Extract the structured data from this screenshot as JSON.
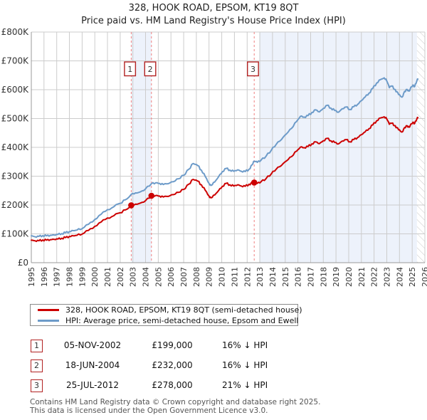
{
  "title": "328, HOOK ROAD, EPSOM, KT19 8QT",
  "subtitle": "Price paid vs. HM Land Registry's House Price Index (HPI)",
  "chart_data": {
    "type": "line",
    "title": "328, HOOK ROAD, EPSOM, KT19 8QT",
    "subtitle": "Price paid vs. HM Land Registry's House Price Index (HPI)",
    "x_axis": {
      "min": 1995,
      "max": 2026,
      "tick_labels": [
        "1995",
        "1996",
        "1997",
        "1998",
        "1999",
        "2000",
        "2001",
        "2002",
        "2003",
        "2004",
        "2005",
        "2006",
        "2007",
        "2008",
        "2009",
        "2010",
        "2011",
        "2012",
        "2013",
        "2014",
        "2015",
        "2016",
        "2017",
        "2018",
        "2019",
        "2020",
        "2021",
        "2022",
        "2023",
        "2024",
        "2025",
        "2026"
      ]
    },
    "y_axis": {
      "min": 0,
      "max": 800000,
      "ticks": [
        {
          "value": 0,
          "label": "£0"
        },
        {
          "value": 100000,
          "label": "£100K"
        },
        {
          "value": 200000,
          "label": "£200K"
        },
        {
          "value": 300000,
          "label": "£300K"
        },
        {
          "value": 400000,
          "label": "£400K"
        },
        {
          "value": 500000,
          "label": "£500K"
        },
        {
          "value": 600000,
          "label": "£600K"
        },
        {
          "value": 700000,
          "label": "£700K"
        },
        {
          "value": 800000,
          "label": "£800K"
        }
      ]
    },
    "grid": true,
    "legend_position": "below",
    "colors": {
      "property_line": "#cc0000",
      "hpi_line": "#6d9bc9",
      "shaded_band": "#edf2fb",
      "gridline": "#cccccc",
      "axis": "#999999",
      "marker_dashed_line": "#f08080",
      "marker_box_border": "#b22222",
      "hatch_line": "#c8c8c8"
    },
    "shaded_bands": [
      [
        2002.87,
        2004.46
      ],
      [
        2012.95,
        2026
      ]
    ],
    "hatch_band": [
      2025.37,
      2026
    ],
    "sale_markers": [
      {
        "num": "1",
        "year": 2002.87,
        "price": 199000
      },
      {
        "num": "2",
        "year": 2004.46,
        "price": 232000
      },
      {
        "num": "3",
        "year": 2012.56,
        "price": 278000
      }
    ],
    "series": [
      {
        "name": "328, HOOK ROAD, EPSOM, KT19 8QT (semi-detached house)",
        "color": "#cc0000",
        "points": [
          [
            1995.0,
            78000
          ],
          [
            1995.3,
            76000
          ],
          [
            1995.6,
            76000
          ],
          [
            1995.9,
            79000
          ],
          [
            1996.2,
            78000
          ],
          [
            1996.5,
            80000
          ],
          [
            1996.8,
            81000
          ],
          [
            1997.1,
            82000
          ],
          [
            1997.4,
            85000
          ],
          [
            1997.7,
            87000
          ],
          [
            1998.0,
            91000
          ],
          [
            1998.3,
            93000
          ],
          [
            1998.6,
            95000
          ],
          [
            1999.0,
            99000
          ],
          [
            1999.5,
            112000
          ],
          [
            2000.0,
            126000
          ],
          [
            2000.5,
            141000
          ],
          [
            2001.0,
            155000
          ],
          [
            2001.5,
            163000
          ],
          [
            2002.0,
            173000
          ],
          [
            2002.4,
            183000
          ],
          [
            2002.87,
            199000
          ],
          [
            2003.2,
            203000
          ],
          [
            2003.6,
            207000
          ],
          [
            2004.0,
            215000
          ],
          [
            2004.46,
            232000
          ],
          [
            2004.8,
            233000
          ],
          [
            2005.1,
            231000
          ],
          [
            2005.4,
            228000
          ],
          [
            2005.8,
            230000
          ],
          [
            2006.2,
            236000
          ],
          [
            2006.6,
            244000
          ],
          [
            2007.0,
            254000
          ],
          [
            2007.4,
            272000
          ],
          [
            2007.75,
            289000
          ],
          [
            2008.1,
            283000
          ],
          [
            2008.4,
            270000
          ],
          [
            2008.7,
            251000
          ],
          [
            2009.0,
            231000
          ],
          [
            2009.15,
            225000
          ],
          [
            2009.45,
            235000
          ],
          [
            2009.75,
            250000
          ],
          [
            2010.05,
            265000
          ],
          [
            2010.35,
            275000
          ],
          [
            2010.65,
            270000
          ],
          [
            2010.95,
            266000
          ],
          [
            2011.25,
            270000
          ],
          [
            2011.55,
            266000
          ],
          [
            2011.85,
            265000
          ],
          [
            2012.15,
            272000
          ],
          [
            2012.4,
            276000
          ],
          [
            2012.56,
            278000
          ],
          [
            2012.8,
            275000
          ],
          [
            2013.1,
            281000
          ],
          [
            2013.5,
            292000
          ],
          [
            2013.9,
            308000
          ],
          [
            2014.3,
            325000
          ],
          [
            2014.7,
            337000
          ],
          [
            2015.1,
            353000
          ],
          [
            2015.5,
            368000
          ],
          [
            2015.9,
            387000
          ],
          [
            2016.2,
            401000
          ],
          [
            2016.5,
            399000
          ],
          [
            2016.8,
            403000
          ],
          [
            2017.1,
            412000
          ],
          [
            2017.4,
            419000
          ],
          [
            2017.7,
            413000
          ],
          [
            2018.0,
            423000
          ],
          [
            2018.3,
            431000
          ],
          [
            2018.6,
            423000
          ],
          [
            2018.9,
            417000
          ],
          [
            2019.2,
            412000
          ],
          [
            2019.5,
            422000
          ],
          [
            2019.8,
            427000
          ],
          [
            2020.1,
            419000
          ],
          [
            2020.4,
            427000
          ],
          [
            2020.7,
            434000
          ],
          [
            2021.0,
            444000
          ],
          [
            2021.3,
            454000
          ],
          [
            2021.6,
            465000
          ],
          [
            2021.9,
            478000
          ],
          [
            2022.2,
            492000
          ],
          [
            2022.5,
            502000
          ],
          [
            2022.8,
            506000
          ],
          [
            2023.0,
            498000
          ],
          [
            2023.2,
            480000
          ],
          [
            2023.4,
            484000
          ],
          [
            2023.6,
            475000
          ],
          [
            2023.8,
            469000
          ],
          [
            2024.0,
            461000
          ],
          [
            2024.2,
            453000
          ],
          [
            2024.4,
            469000
          ],
          [
            2024.6,
            475000
          ],
          [
            2024.75,
            470000
          ],
          [
            2024.9,
            481000
          ],
          [
            2025.05,
            487000
          ],
          [
            2025.2,
            483000
          ],
          [
            2025.35,
            496000
          ],
          [
            2025.45,
            503000
          ]
        ]
      },
      {
        "name": "HPI: Average price, semi-detached house, Epsom and Ewell",
        "color": "#6d9bc9",
        "points": [
          [
            1995.0,
            93000
          ],
          [
            1995.3,
            90000
          ],
          [
            1995.6,
            91000
          ],
          [
            1995.9,
            94000
          ],
          [
            1996.2,
            93000
          ],
          [
            1996.5,
            95000
          ],
          [
            1996.8,
            96000
          ],
          [
            1997.1,
            98000
          ],
          [
            1997.4,
            101000
          ],
          [
            1997.7,
            104000
          ],
          [
            1998.0,
            108000
          ],
          [
            1998.3,
            111000
          ],
          [
            1998.6,
            113000
          ],
          [
            1999.0,
            118000
          ],
          [
            1999.5,
            133000
          ],
          [
            2000.0,
            150000
          ],
          [
            2000.5,
            168000
          ],
          [
            2001.0,
            184000
          ],
          [
            2001.5,
            194000
          ],
          [
            2002.0,
            206000
          ],
          [
            2002.4,
            218000
          ],
          [
            2002.87,
            237000
          ],
          [
            2003.2,
            242000
          ],
          [
            2003.6,
            246000
          ],
          [
            2004.0,
            256000
          ],
          [
            2004.46,
            274000
          ],
          [
            2004.8,
            277000
          ],
          [
            2005.1,
            275000
          ],
          [
            2005.4,
            271000
          ],
          [
            2005.8,
            274000
          ],
          [
            2006.2,
            281000
          ],
          [
            2006.6,
            291000
          ],
          [
            2007.0,
            303000
          ],
          [
            2007.4,
            324000
          ],
          [
            2007.75,
            344000
          ],
          [
            2008.1,
            337000
          ],
          [
            2008.4,
            321000
          ],
          [
            2008.7,
            299000
          ],
          [
            2009.0,
            275000
          ],
          [
            2009.15,
            268000
          ],
          [
            2009.45,
            280000
          ],
          [
            2009.75,
            298000
          ],
          [
            2010.05,
            316000
          ],
          [
            2010.35,
            327000
          ],
          [
            2010.65,
            321000
          ],
          [
            2010.95,
            317000
          ],
          [
            2011.25,
            322000
          ],
          [
            2011.55,
            317000
          ],
          [
            2011.85,
            316000
          ],
          [
            2012.15,
            324000
          ],
          [
            2012.4,
            340000
          ],
          [
            2012.56,
            352000
          ],
          [
            2012.8,
            348000
          ],
          [
            2013.1,
            356000
          ],
          [
            2013.5,
            370000
          ],
          [
            2013.9,
            390000
          ],
          [
            2014.3,
            411000
          ],
          [
            2014.7,
            427000
          ],
          [
            2015.1,
            447000
          ],
          [
            2015.5,
            466000
          ],
          [
            2015.9,
            490000
          ],
          [
            2016.2,
            508000
          ],
          [
            2016.5,
            505000
          ],
          [
            2016.8,
            510000
          ],
          [
            2017.1,
            521000
          ],
          [
            2017.4,
            530000
          ],
          [
            2017.7,
            523000
          ],
          [
            2018.0,
            535000
          ],
          [
            2018.3,
            546000
          ],
          [
            2018.6,
            536000
          ],
          [
            2018.9,
            528000
          ],
          [
            2019.2,
            522000
          ],
          [
            2019.5,
            534000
          ],
          [
            2019.8,
            540000
          ],
          [
            2020.1,
            531000
          ],
          [
            2020.4,
            541000
          ],
          [
            2020.7,
            549000
          ],
          [
            2021.0,
            562000
          ],
          [
            2021.3,
            575000
          ],
          [
            2021.6,
            588000
          ],
          [
            2021.9,
            605000
          ],
          [
            2022.2,
            623000
          ],
          [
            2022.5,
            635000
          ],
          [
            2022.8,
            641000
          ],
          [
            2023.0,
            630000
          ],
          [
            2023.2,
            607000
          ],
          [
            2023.4,
            613000
          ],
          [
            2023.6,
            601000
          ],
          [
            2023.8,
            593000
          ],
          [
            2024.0,
            583000
          ],
          [
            2024.2,
            574000
          ],
          [
            2024.4,
            594000
          ],
          [
            2024.6,
            601000
          ],
          [
            2024.75,
            595000
          ],
          [
            2024.9,
            609000
          ],
          [
            2025.05,
            616000
          ],
          [
            2025.2,
            611000
          ],
          [
            2025.35,
            628000
          ],
          [
            2025.45,
            637000
          ]
        ]
      }
    ]
  },
  "legend": {
    "items": [
      {
        "label": "328, HOOK ROAD, EPSOM, KT19 8QT (semi-detached house)",
        "color": "#cc0000"
      },
      {
        "label": "HPI: Average price, semi-detached house, Epsom and Ewell",
        "color": "#6d9bc9"
      }
    ]
  },
  "transactions": [
    {
      "num": "1",
      "date": "05-NOV-2002",
      "price": "£199,000",
      "hpi_diff": "16% ↓ HPI"
    },
    {
      "num": "2",
      "date": "18-JUN-2004",
      "price": "£232,000",
      "hpi_diff": "16% ↓ HPI"
    },
    {
      "num": "3",
      "date": "25-JUL-2012",
      "price": "£278,000",
      "hpi_diff": "21% ↓ HPI"
    }
  ],
  "footer": {
    "line1": "Contains HM Land Registry data © Crown copyright and database right 2025.",
    "line2": "This data is licensed under the Open Government Licence v3.0."
  }
}
